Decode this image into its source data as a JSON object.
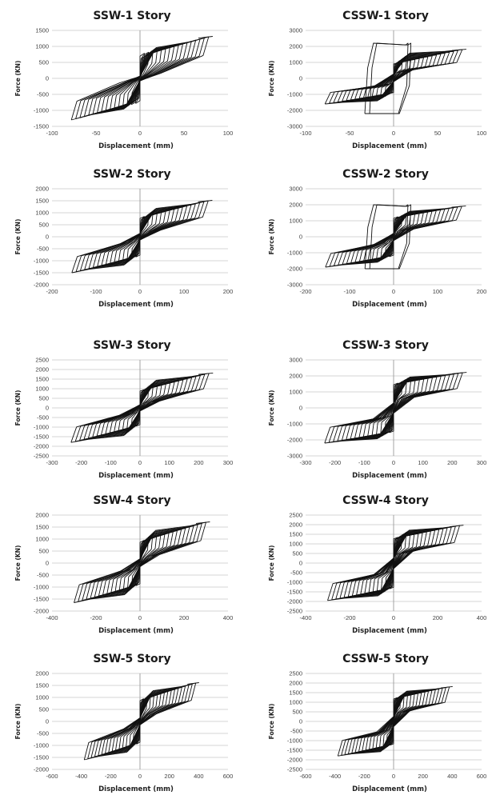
{
  "chart_data": [
    {
      "type": "line",
      "title": "SSW-1 Story",
      "xlabel": "Displacement (mm)",
      "ylabel": "Force (KN)",
      "xlim": [
        -100,
        100
      ],
      "ylim": [
        -1500,
        1500
      ],
      "xticks": [
        -100,
        -50,
        0,
        50,
        100
      ],
      "yticks": [
        -1500,
        -1000,
        -500,
        0,
        500,
        1000,
        1500
      ],
      "grid": true,
      "dmax": 78,
      "fmax": 1300,
      "fmin": -1300,
      "yield_force": 750,
      "pinch": 0.35,
      "cycles": 16
    },
    {
      "type": "line",
      "title": "CSSW-1 Story",
      "xlabel": "Displacement (mm)",
      "ylabel": "Force (KN)",
      "xlim": [
        -100,
        100
      ],
      "ylim": [
        -3000,
        3000
      ],
      "xticks": [
        -100,
        -50,
        0,
        50,
        100
      ],
      "yticks": [
        -3000,
        -2000,
        -1000,
        0,
        1000,
        2000,
        3000
      ],
      "grid": true,
      "dmax": 78,
      "fmax": 1800,
      "fmin": -1600,
      "yield_force": 900,
      "pinch": 0.9,
      "cycles": 16,
      "overshoot": 2200
    },
    {
      "type": "line",
      "title": "SSW-2 Story",
      "xlabel": "Displacement (mm)",
      "ylabel": "Force (KN)",
      "xlim": [
        -200,
        200
      ],
      "ylim": [
        -2000,
        2000
      ],
      "xticks": [
        -200,
        -100,
        0,
        100,
        200
      ],
      "yticks": [
        -2000,
        -1500,
        -1000,
        -500,
        0,
        500,
        1000,
        1500,
        2000
      ],
      "grid": true,
      "dmax": 155,
      "fmax": 1500,
      "fmin": -1500,
      "yield_force": 800,
      "pinch": 0.55,
      "cycles": 16
    },
    {
      "type": "line",
      "title": "CSSW-2 Story",
      "xlabel": "Displacement (mm)",
      "ylabel": "Force (KN)",
      "xlim": [
        -200,
        200
      ],
      "ylim": [
        -3000,
        3000
      ],
      "xticks": [
        -200,
        -100,
        0,
        100,
        200
      ],
      "yticks": [
        -3000,
        -2000,
        -1000,
        0,
        1000,
        2000,
        3000
      ],
      "grid": true,
      "dmax": 155,
      "fmax": 1900,
      "fmin": -1900,
      "yield_force": 1200,
      "pinch": 0.75,
      "cycles": 16,
      "overshoot": 2000
    },
    {
      "type": "line",
      "title": "SSW-3 Story",
      "xlabel": "Displacement (mm)",
      "ylabel": "Force (KN)",
      "xlim": [
        -300,
        300
      ],
      "ylim": [
        -2500,
        2500
      ],
      "xticks": [
        -300,
        -200,
        -100,
        0,
        100,
        200,
        300
      ],
      "yticks": [
        -2500,
        -2000,
        -1500,
        -1000,
        -500,
        0,
        500,
        1000,
        1500,
        2000,
        2500
      ],
      "grid": true,
      "dmax": 235,
      "fmax": 1800,
      "fmin": -1800,
      "yield_force": 900,
      "pinch": 0.6,
      "cycles": 16
    },
    {
      "type": "line",
      "title": "CSSW-3 Story",
      "xlabel": "Displacement (mm)",
      "ylabel": "Force (KN)",
      "xlim": [
        -300,
        300
      ],
      "ylim": [
        -3000,
        3000
      ],
      "xticks": [
        -300,
        -200,
        -100,
        0,
        100,
        200,
        300
      ],
      "yticks": [
        -3000,
        -2000,
        -1000,
        0,
        1000,
        2000,
        3000
      ],
      "grid": true,
      "dmax": 235,
      "fmax": 2200,
      "fmin": -2200,
      "yield_force": 1500,
      "pinch": 0.9,
      "cycles": 16
    },
    {
      "type": "line",
      "title": "SSW-4 Story",
      "xlabel": "Displacement (mm)",
      "ylabel": "Force (KN)",
      "xlim": [
        -400,
        400
      ],
      "ylim": [
        -2000,
        2000
      ],
      "xticks": [
        -400,
        -200,
        0,
        200,
        400
      ],
      "yticks": [
        -2000,
        -1500,
        -1000,
        -500,
        0,
        500,
        1000,
        1500,
        2000
      ],
      "grid": true,
      "dmax": 300,
      "fmax": 1700,
      "fmin": -1650,
      "yield_force": 900,
      "pinch": 0.6,
      "cycles": 16
    },
    {
      "type": "line",
      "title": "CSSW-4 Story",
      "xlabel": "Displacement (mm)",
      "ylabel": "Force (KN)",
      "xlim": [
        -400,
        400
      ],
      "ylim": [
        -2500,
        2500
      ],
      "xticks": [
        -400,
        -200,
        0,
        200,
        400
      ],
      "yticks": [
        -2500,
        -2000,
        -1500,
        -1000,
        -500,
        0,
        500,
        1000,
        1500,
        2000,
        2500
      ],
      "grid": true,
      "dmax": 300,
      "fmax": 1950,
      "fmin": -1950,
      "yield_force": 1300,
      "pinch": 0.9,
      "cycles": 16
    },
    {
      "type": "line",
      "title": "SSW-5 Story",
      "xlabel": "Displacement (mm)",
      "ylabel": "Force (KN)",
      "xlim": [
        -600,
        600
      ],
      "ylim": [
        -2000,
        2000
      ],
      "xticks": [
        -600,
        -400,
        -200,
        0,
        200,
        400,
        600
      ],
      "yticks": [
        -2000,
        -1500,
        -1000,
        -500,
        0,
        500,
        1000,
        1500,
        2000
      ],
      "grid": true,
      "dmax": 380,
      "fmax": 1600,
      "fmin": -1600,
      "yield_force": 900,
      "pinch": 0.6,
      "cycles": 16
    },
    {
      "type": "line",
      "title": "CSSW-5 Story",
      "xlabel": "Displacement (mm)",
      "ylabel": "Force (KN)",
      "xlim": [
        -600,
        600
      ],
      "ylim": [
        -2500,
        2500
      ],
      "xticks": [
        -600,
        -400,
        -200,
        0,
        200,
        400,
        600
      ],
      "yticks": [
        -2500,
        -2000,
        -1500,
        -1000,
        -500,
        0,
        500,
        1000,
        1500,
        2000,
        2500
      ],
      "grid": true,
      "dmax": 380,
      "fmax": 1800,
      "fmin": -1800,
      "yield_force": 1200,
      "pinch": 0.9,
      "cycles": 16
    }
  ]
}
